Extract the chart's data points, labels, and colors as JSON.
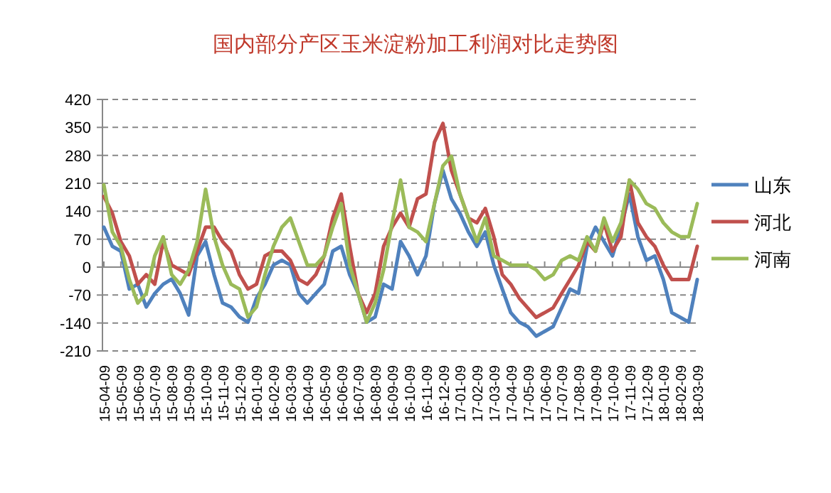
{
  "chart_data": {
    "type": "line",
    "title": "国内部分产区玉米淀粉加工利润对比走势图",
    "categories": [
      "15-04-09",
      null,
      "15-05-09",
      null,
      "15-06-09",
      null,
      "15-07-09",
      null,
      "15-08-09",
      null,
      "15-09-09",
      null,
      "15-10-09",
      null,
      "15-11-09",
      null,
      "15-12-09",
      null,
      "16-01-09",
      null,
      "16-02-09",
      null,
      "16-03-09",
      null,
      "16-04-09",
      null,
      "16-05-09",
      null,
      "16-06-09",
      null,
      "16-07-09",
      null,
      "16-08-09",
      null,
      "16-09-09",
      null,
      "16-10-09",
      null,
      "16-11-09",
      null,
      "16-12-09",
      null,
      "17-01-09",
      null,
      "17-02-09",
      null,
      "17-03-09",
      null,
      "17-04-09",
      null,
      "17-05-09",
      null,
      "17-06-09",
      null,
      "17-07-09",
      null,
      "17-08-09",
      null,
      "17-09-09",
      null,
      "17-10-09",
      null,
      "17-11-09",
      null,
      "17-12-09",
      null,
      "18-01-09",
      null,
      "18-02-09",
      null,
      "18-03-09"
    ],
    "series": [
      {
        "name": "山东",
        "color": "#4f81bd",
        "values": [
          100,
          52,
          40,
          -55,
          -43,
          -100,
          -66,
          -43,
          -30,
          -66,
          -120,
          28,
          64,
          -19,
          -90,
          -100,
          -125,
          -138,
          -78,
          -43,
          5,
          17,
          5,
          -66,
          -90,
          -66,
          -43,
          40,
          52,
          -19,
          -66,
          -138,
          -125,
          -43,
          -55,
          64,
          28,
          -19,
          28,
          159,
          242,
          171,
          135,
          88,
          52,
          88,
          5,
          -55,
          -114,
          -138,
          -149,
          -173,
          -161,
          -149,
          -102,
          -55,
          -66,
          52,
          100,
          64,
          28,
          100,
          183,
          76,
          17,
          28,
          -31,
          -114,
          -126,
          -138,
          -31
        ]
      },
      {
        "name": "河北",
        "color": "#c0504d",
        "values": [
          177,
          135,
          64,
          28,
          -43,
          -19,
          -43,
          64,
          5,
          -7,
          -19,
          40,
          100,
          100,
          64,
          40,
          -19,
          -55,
          -43,
          28,
          40,
          40,
          17,
          -31,
          -43,
          -19,
          28,
          123,
          183,
          52,
          -66,
          -114,
          -66,
          52,
          100,
          135,
          100,
          171,
          183,
          313,
          360,
          242,
          183,
          123,
          111,
          147,
          76,
          -19,
          -43,
          -78,
          -102,
          -126,
          -114,
          -102,
          -66,
          -31,
          5,
          64,
          40,
          111,
          40,
          76,
          218,
          111,
          76,
          52,
          5,
          -31,
          -31,
          -31,
          52
        ]
      },
      {
        "name": "河南",
        "color": "#9bbb59",
        "values": [
          206,
          88,
          52,
          -31,
          -90,
          -66,
          28,
          76,
          -19,
          -43,
          -7,
          64,
          195,
          76,
          5,
          -43,
          -55,
          -125,
          -100,
          -19,
          52,
          100,
          123,
          64,
          5,
          5,
          28,
          100,
          159,
          5,
          -66,
          -138,
          -90,
          -7,
          111,
          218,
          100,
          88,
          64,
          159,
          254,
          278,
          183,
          123,
          64,
          123,
          28,
          17,
          5,
          5,
          5,
          -7,
          -31,
          -19,
          17,
          28,
          17,
          76,
          40,
          123,
          64,
          111,
          218,
          195,
          159,
          147,
          111,
          88,
          76,
          76,
          159
        ]
      }
    ],
    "ylim": [
      -210,
      420
    ],
    "yticks": [
      -210,
      -140,
      -70,
      0,
      70,
      140,
      210,
      280,
      350,
      420
    ],
    "grid": "y",
    "legend": "right"
  }
}
